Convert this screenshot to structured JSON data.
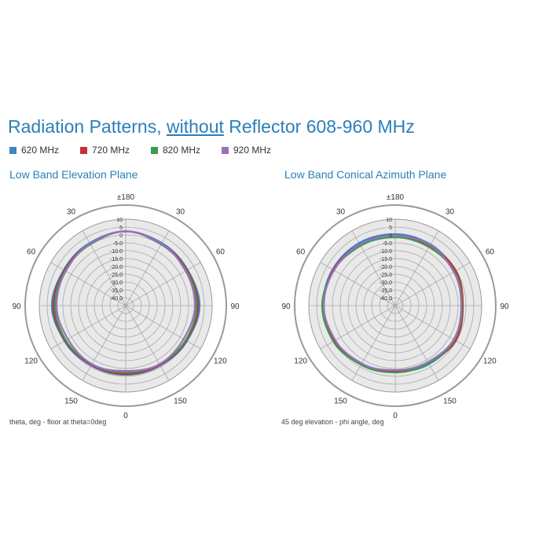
{
  "header": {
    "title_pre": "Radiation Patterns, ",
    "title_u": "without",
    "title_post": " Reflector 608-960 MHz"
  },
  "legend": [
    {
      "label": "620 MHz",
      "color": "#3a86c4"
    },
    {
      "label": "720 MHz",
      "color": "#c62f38"
    },
    {
      "label": "820 MHz",
      "color": "#3c9c4a"
    },
    {
      "label": "920 MHz",
      "color": "#9b6fbf"
    }
  ],
  "chart_data": [
    {
      "type": "polar",
      "title": "Low Band Elevation Plane",
      "xlabel": "theta, deg - floor at theta=0deg",
      "rlim": [
        -45,
        10
      ],
      "ring_ticks": [
        "10",
        "5",
        "0",
        "-5.0",
        "-10.0",
        "-15.0",
        "-20.0",
        "-25.0",
        "-30.0",
        "-35.0",
        "-40.0"
      ],
      "angle_labels": [
        {
          "text": "±180",
          "angle": 0
        },
        {
          "text": "30",
          "angle": 30
        },
        {
          "text": "60",
          "angle": 60
        },
        {
          "text": "90",
          "angle": 90
        },
        {
          "text": "120",
          "angle": 120
        },
        {
          "text": "150",
          "angle": 150
        },
        {
          "text": "0",
          "angle": 180
        },
        {
          "text": "150",
          "angle": 210
        },
        {
          "text": "120",
          "angle": 240
        },
        {
          "text": "90",
          "angle": 270
        },
        {
          "text": "60",
          "angle": 300
        },
        {
          "text": "30",
          "angle": 330
        }
      ],
      "angles": [
        0,
        30,
        60,
        90,
        120,
        150,
        180,
        210,
        240,
        270,
        300,
        330
      ],
      "series": [
        {
          "name": "620 MHz",
          "values": [
            2.3,
            1.0,
            0.5,
            2.0,
            0.0,
            -1.0,
            -1.0,
            -1.0,
            0.0,
            2.0,
            0.5,
            1.0
          ]
        },
        {
          "name": "720 MHz",
          "values": [
            2.3,
            0.5,
            0.0,
            1.0,
            -0.5,
            -1.5,
            -1.5,
            -1.5,
            -0.5,
            1.0,
            0.0,
            0.5
          ]
        },
        {
          "name": "820 MHz",
          "values": [
            2.3,
            0.0,
            -0.5,
            0.0,
            -1.0,
            -2.0,
            -2.5,
            -2.0,
            -1.0,
            0.0,
            -0.5,
            0.0
          ]
        },
        {
          "name": "920 MHz",
          "values": [
            2.3,
            0.5,
            -1.0,
            -1.0,
            -2.5,
            -2.0,
            -3.5,
            -2.0,
            -2.5,
            -1.0,
            -1.0,
            0.5
          ]
        }
      ]
    },
    {
      "type": "polar",
      "title": "Low Band Conical Azimuth Plane",
      "xlabel": "45 deg elevation - phi angle, deg",
      "rlim": [
        -45,
        10
      ],
      "ring_ticks": [
        "10",
        "5",
        "0",
        "-5.0",
        "-10.0",
        "-15.0",
        "-20.0",
        "-25.0",
        "-30.0",
        "-35.0",
        "-40.0"
      ],
      "angle_labels": [
        {
          "text": "±180",
          "angle": 0
        },
        {
          "text": "30",
          "angle": 30
        },
        {
          "text": "60",
          "angle": 60
        },
        {
          "text": "90",
          "angle": 90
        },
        {
          "text": "120",
          "angle": 120
        },
        {
          "text": "150",
          "angle": 150
        },
        {
          "text": "0",
          "angle": 180
        },
        {
          "text": "150",
          "angle": 210
        },
        {
          "text": "120",
          "angle": 240
        },
        {
          "text": "90",
          "angle": 270
        },
        {
          "text": "60",
          "angle": 300
        },
        {
          "text": "30",
          "angle": 330
        }
      ],
      "angles": [
        0,
        30,
        60,
        90,
        120,
        150,
        180,
        210,
        240,
        270,
        300,
        330
      ],
      "series": [
        {
          "name": "620 MHz",
          "values": [
            0.5,
            0.0,
            -1.5,
            -2.0,
            -1.5,
            -2.0,
            -3.0,
            -2.0,
            -0.5,
            1.0,
            1.0,
            1.0
          ]
        },
        {
          "name": "720 MHz",
          "values": [
            -0.5,
            -1.0,
            -0.5,
            -2.0,
            -0.5,
            -3.0,
            -3.5,
            -2.5,
            0.0,
            0.5,
            0.5,
            0.0
          ]
        },
        {
          "name": "820 MHz",
          "values": [
            -1.5,
            -2.0,
            -1.5,
            -2.5,
            -1.5,
            -2.5,
            -2.5,
            -1.5,
            0.5,
            1.5,
            0.0,
            -1.0
          ]
        },
        {
          "name": "920 MHz",
          "values": [
            -0.5,
            -0.5,
            -2.0,
            -3.0,
            -2.0,
            -3.5,
            -4.0,
            -2.5,
            -1.0,
            0.5,
            0.0,
            0.0
          ]
        }
      ]
    }
  ]
}
